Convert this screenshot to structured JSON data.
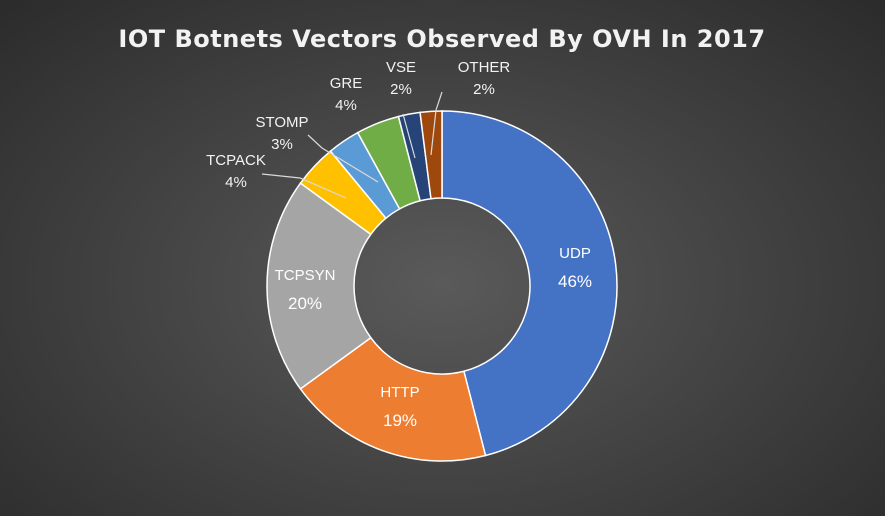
{
  "chart_data": {
    "type": "pie",
    "donut": true,
    "title": "IOT Botnets Vectors Observed By OVH In 2017",
    "categories": [
      "UDP",
      "HTTP",
      "TCPSYN",
      "TCPACK",
      "STOMP",
      "GRE",
      "VSE",
      "OTHER"
    ],
    "values": [
      46,
      19,
      20,
      4,
      3,
      4,
      2,
      2
    ],
    "labels": [
      "46%",
      "19%",
      "20%",
      "4%",
      "3%",
      "4%",
      "2%",
      "2%"
    ],
    "colors": [
      "#4472C4",
      "#ED7D31",
      "#A5A5A5",
      "#FFC000",
      "#5B9BD5",
      "#70AD47",
      "#264478",
      "#9E480E"
    ],
    "legend": "none"
  }
}
